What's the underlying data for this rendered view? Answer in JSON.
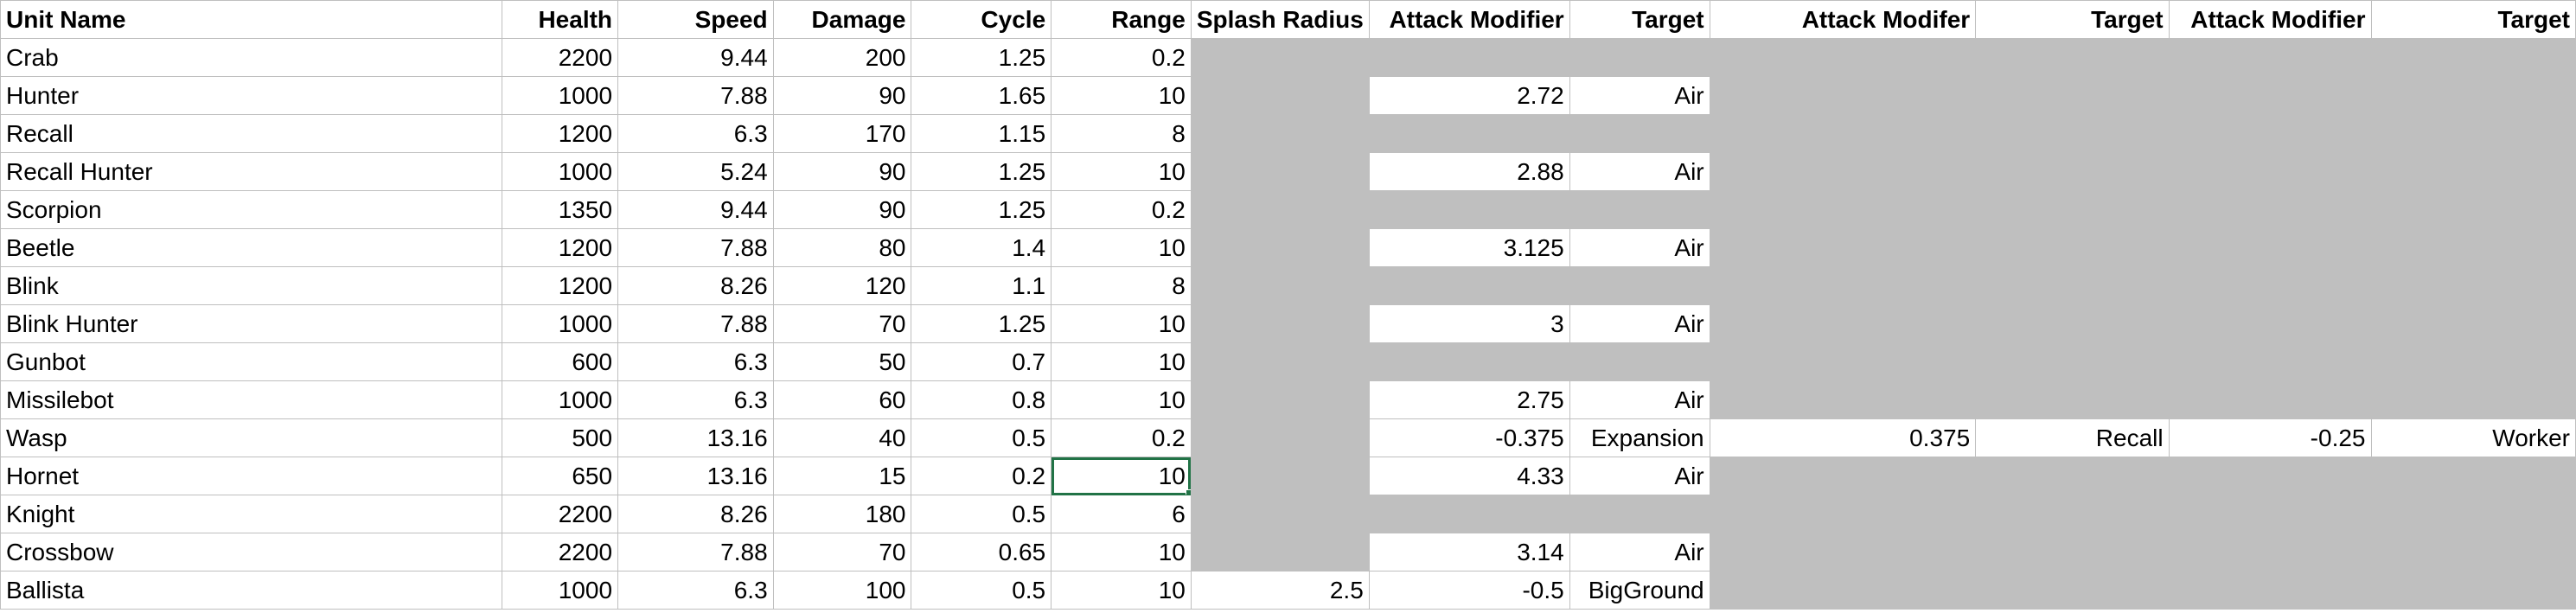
{
  "columns": [
    "Unit Name",
    "Health",
    "Speed",
    "Damage",
    "Cycle",
    "Range",
    "Splash Radius",
    "Attack Modifier",
    "Target",
    "Attack Modifer",
    "Target",
    "Attack Modifier",
    "Target"
  ],
  "rows": [
    {
      "cells": [
        "Crab",
        "2200",
        "9.44",
        "200",
        "1.25",
        "0.2",
        "",
        "",
        "",
        "",
        "",
        "",
        ""
      ],
      "gray": [
        6,
        7,
        8,
        9,
        10,
        11,
        12
      ]
    },
    {
      "cells": [
        "Hunter",
        "1000",
        "7.88",
        "90",
        "1.65",
        "10",
        "",
        "2.72",
        "Air",
        "",
        "",
        "",
        ""
      ],
      "gray": [
        6,
        9,
        10,
        11,
        12
      ]
    },
    {
      "cells": [
        "Recall",
        "1200",
        "6.3",
        "170",
        "1.15",
        "8",
        "",
        "",
        "",
        "",
        "",
        "",
        ""
      ],
      "gray": [
        6,
        7,
        8,
        9,
        10,
        11,
        12
      ]
    },
    {
      "cells": [
        "Recall Hunter",
        "1000",
        "5.24",
        "90",
        "1.25",
        "10",
        "",
        "2.88",
        "Air",
        "",
        "",
        "",
        ""
      ],
      "gray": [
        6,
        9,
        10,
        11,
        12
      ]
    },
    {
      "cells": [
        "Scorpion",
        "1350",
        "9.44",
        "90",
        "1.25",
        "0.2",
        "",
        "",
        "",
        "",
        "",
        "",
        ""
      ],
      "gray": [
        6,
        7,
        8,
        9,
        10,
        11,
        12
      ]
    },
    {
      "cells": [
        "Beetle",
        "1200",
        "7.88",
        "80",
        "1.4",
        "10",
        "",
        "3.125",
        "Air",
        "",
        "",
        "",
        ""
      ],
      "gray": [
        6,
        9,
        10,
        11,
        12
      ]
    },
    {
      "cells": [
        "Blink",
        "1200",
        "8.26",
        "120",
        "1.1",
        "8",
        "",
        "",
        "",
        "",
        "",
        "",
        ""
      ],
      "gray": [
        6,
        7,
        8,
        9,
        10,
        11,
        12
      ]
    },
    {
      "cells": [
        "Blink Hunter",
        "1000",
        "7.88",
        "70",
        "1.25",
        "10",
        "",
        "3",
        "Air",
        "",
        "",
        "",
        ""
      ],
      "gray": [
        6,
        9,
        10,
        11,
        12
      ]
    },
    {
      "cells": [
        "Gunbot",
        "600",
        "6.3",
        "50",
        "0.7",
        "10",
        "",
        "",
        "",
        "",
        "",
        "",
        ""
      ],
      "gray": [
        6,
        7,
        8,
        9,
        10,
        11,
        12
      ]
    },
    {
      "cells": [
        "Missilebot",
        "1000",
        "6.3",
        "60",
        "0.8",
        "10",
        "",
        "2.75",
        "Air",
        "",
        "",
        "",
        ""
      ],
      "gray": [
        6,
        9,
        10,
        11,
        12
      ]
    },
    {
      "cells": [
        "Wasp",
        "500",
        "13.16",
        "40",
        "0.5",
        "0.2",
        "",
        "-0.375",
        "Expansion",
        "0.375",
        "Recall",
        "-0.25",
        "Worker"
      ],
      "gray": [
        6
      ]
    },
    {
      "cells": [
        "Hornet",
        "650",
        "13.16",
        "15",
        "0.2",
        "10",
        "",
        "4.33",
        "Air",
        "",
        "",
        "",
        ""
      ],
      "gray": [
        6,
        9,
        10,
        11,
        12
      ],
      "selected": 5
    },
    {
      "cells": [
        "Knight",
        "2200",
        "8.26",
        "180",
        "0.5",
        "6",
        "",
        "",
        "",
        "",
        "",
        "",
        ""
      ],
      "gray": [
        6,
        7,
        8,
        9,
        10,
        11,
        12
      ]
    },
    {
      "cells": [
        "Crossbow",
        "2200",
        "7.88",
        "70",
        "0.65",
        "10",
        "",
        "3.14",
        "Air",
        "",
        "",
        "",
        ""
      ],
      "gray": [
        6,
        9,
        10,
        11,
        12
      ]
    },
    {
      "cells": [
        "Ballista",
        "1000",
        "6.3",
        "100",
        "0.5",
        "10",
        "2.5",
        "-0.5",
        "BigGround",
        "",
        "",
        "",
        ""
      ],
      "gray": [
        9,
        10,
        11,
        12
      ]
    }
  ]
}
